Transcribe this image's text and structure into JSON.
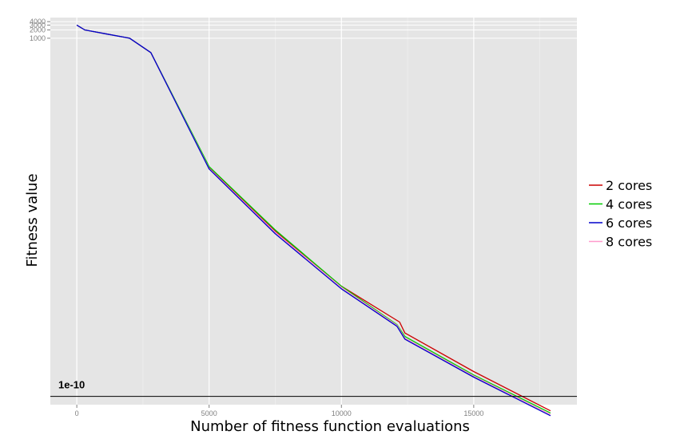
{
  "chart_data": {
    "type": "line",
    "title": "",
    "xlabel": "Number of fitness function evaluations",
    "ylabel": "Fitness value",
    "xlim": [
      -1000,
      18900
    ],
    "ylim_log10": [
      -10.3,
      3.75
    ],
    "y_scale": "log",
    "x_ticks": [
      0,
      5000,
      10000,
      15000
    ],
    "x_tick_labels": [
      "0",
      "5000",
      "10000",
      "15000"
    ],
    "y_ticks": [
      4000,
      3000,
      2000,
      1000
    ],
    "y_tick_labels": [
      "4000",
      "3000",
      "2000",
      "1000"
    ],
    "grid": true,
    "legend_position": "right",
    "reference_line": {
      "y": 1e-10,
      "label": "1e-10",
      "color": "#000000"
    },
    "series": [
      {
        "name": "2 cores",
        "color": "#cc0000",
        "x": [
          0,
          300,
          1000,
          2000,
          2800,
          5000,
          7500,
          10000,
          12200,
          12400,
          15000,
          17900
        ],
        "y": [
          3000,
          2000,
          1500,
          1000,
          300,
          0.02,
          0.0001,
          1e-06,
          5e-08,
          2e-08,
          8e-10,
          3e-11
        ]
      },
      {
        "name": "4 cores",
        "color": "#00cc00",
        "x": [
          0,
          300,
          1000,
          2000,
          2800,
          5000,
          7500,
          10000,
          12100,
          12400,
          15000,
          17900
        ],
        "y": [
          3000,
          2000,
          1500,
          1000,
          300,
          0.022,
          0.00011,
          1e-06,
          4e-08,
          1.5e-08,
          6e-10,
          2.5e-11
        ]
      },
      {
        "name": "6 cores",
        "color": "#0000cc",
        "x": [
          0,
          300,
          1000,
          2000,
          2800,
          5000,
          7500,
          10000,
          12100,
          12400,
          15000,
          17900
        ],
        "y": [
          3000,
          2000,
          1500,
          1000,
          300,
          0.018,
          8e-05,
          8e-07,
          3.5e-08,
          1.2e-08,
          5e-10,
          2e-11
        ]
      },
      {
        "name": "8 cores",
        "color": "#ff99cc",
        "x": [
          0,
          300,
          1000,
          2000,
          2800,
          5000,
          7500,
          10000,
          12100,
          12400,
          15000,
          17900
        ],
        "y": [
          3000,
          2000,
          1500,
          1000,
          300,
          0.019,
          9e-05,
          9e-07,
          3.8e-08,
          1.3e-08,
          5.5e-10,
          2.2e-11
        ]
      }
    ]
  }
}
